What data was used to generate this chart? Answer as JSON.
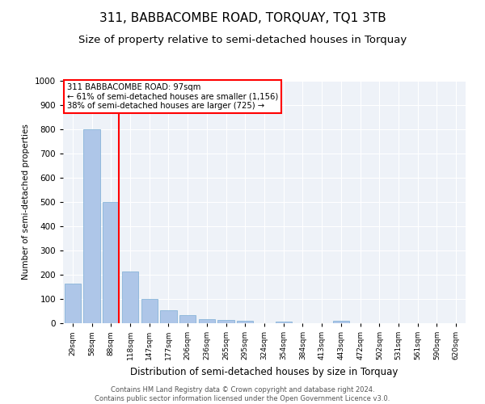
{
  "title": "311, BABBACOMBE ROAD, TORQUAY, TQ1 3TB",
  "subtitle": "Size of property relative to semi-detached houses in Torquay",
  "xlabel": "Distribution of semi-detached houses by size in Torquay",
  "ylabel": "Number of semi-detached properties",
  "categories": [
    "29sqm",
    "58sqm",
    "88sqm",
    "118sqm",
    "147sqm",
    "177sqm",
    "206sqm",
    "236sqm",
    "265sqm",
    "295sqm",
    "324sqm",
    "354sqm",
    "384sqm",
    "413sqm",
    "443sqm",
    "472sqm",
    "502sqm",
    "531sqm",
    "561sqm",
    "590sqm",
    "620sqm"
  ],
  "values": [
    165,
    800,
    500,
    215,
    100,
    55,
    35,
    18,
    12,
    10,
    0,
    8,
    0,
    0,
    10,
    0,
    0,
    0,
    0,
    0,
    0
  ],
  "bar_color": "#aec6e8",
  "bar_edge_color": "#7aadd4",
  "red_line_index": 2,
  "red_line_label": "311 BABBACOMBE ROAD: 97sqm",
  "annotation_line1": "← 61% of semi-detached houses are smaller (1,156)",
  "annotation_line2": "38% of semi-detached houses are larger (725) →",
  "ylim": [
    0,
    1000
  ],
  "yticks": [
    0,
    100,
    200,
    300,
    400,
    500,
    600,
    700,
    800,
    900,
    1000
  ],
  "plot_bg_color": "#eef2f8",
  "footer_line1": "Contains HM Land Registry data © Crown copyright and database right 2024.",
  "footer_line2": "Contains public sector information licensed under the Open Government Licence v3.0.",
  "title_fontsize": 11,
  "subtitle_fontsize": 9.5
}
